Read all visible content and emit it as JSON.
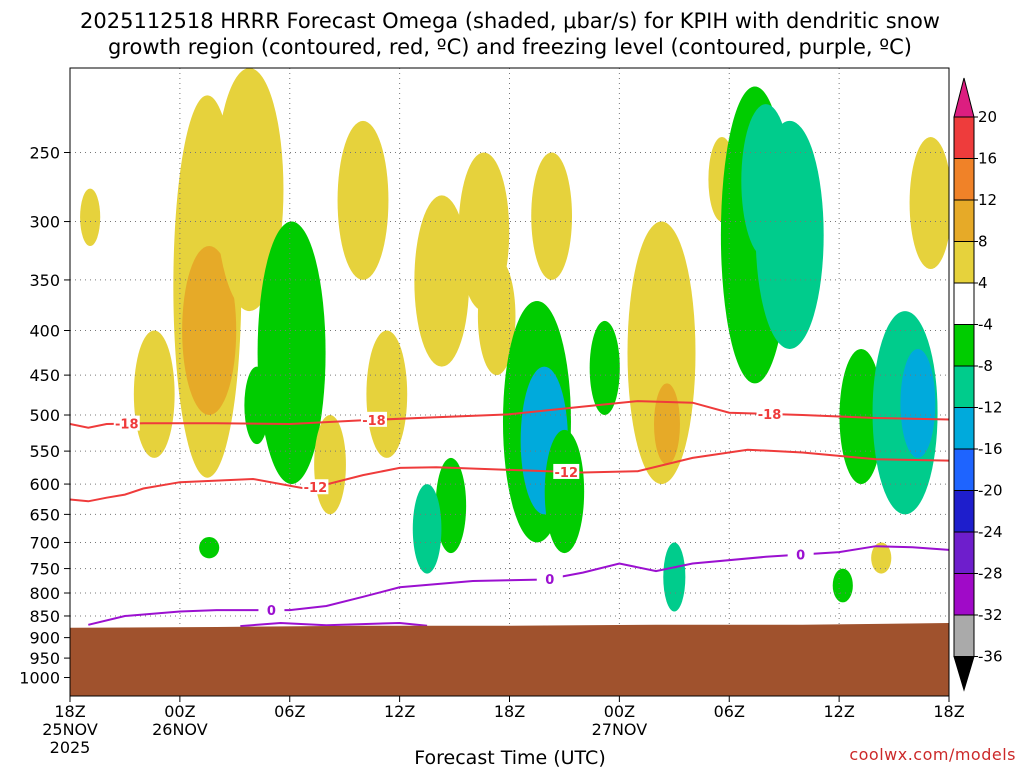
{
  "chart_data": {
    "type": "contour",
    "title_line1": "2025112518 HRRR Forecast Omega (shaded, μbar/s) for KPIH with dendritic snow",
    "title_line2": "growth region (contoured, red, ºC) and freezing level (contoured, purple, ºC)",
    "xlabel": "Forecast Time (UTC)",
    "credit": "coolwx.com/models",
    "x_ticks": [
      {
        "hour": 0,
        "l1": "18Z",
        "l2": "25NOV",
        "l3": "2025"
      },
      {
        "hour": 6,
        "l1": "00Z",
        "l2": "26NOV",
        "l3": ""
      },
      {
        "hour": 12,
        "l1": "06Z",
        "l2": "",
        "l3": ""
      },
      {
        "hour": 18,
        "l1": "12Z",
        "l2": "",
        "l3": ""
      },
      {
        "hour": 24,
        "l1": "18Z",
        "l2": "",
        "l3": ""
      },
      {
        "hour": 30,
        "l1": "00Z",
        "l2": "27NOV",
        "l3": ""
      },
      {
        "hour": 36,
        "l1": "06Z",
        "l2": "",
        "l3": ""
      },
      {
        "hour": 42,
        "l1": "12Z",
        "l2": "",
        "l3": ""
      },
      {
        "hour": 48,
        "l1": "18Z",
        "l2": "",
        "l3": ""
      }
    ],
    "xlim": [
      0,
      48
    ],
    "y_ticks": [
      250,
      300,
      350,
      400,
      450,
      500,
      550,
      600,
      650,
      700,
      750,
      800,
      850,
      900,
      950,
      1000
    ],
    "ylim": [
      1050,
      200
    ],
    "y_scale": "log-pressure (hPa)",
    "surface_pressure_hPa": [
      [
        0,
        877
      ],
      [
        8,
        875
      ],
      [
        16,
        872
      ],
      [
        24,
        872
      ],
      [
        32,
        870
      ],
      [
        40,
        870
      ],
      [
        48,
        866
      ]
    ],
    "colorbar": {
      "ticks": [
        "20",
        "16",
        "12",
        "8",
        "4",
        "-4",
        "-8",
        "-12",
        "-16",
        "-20",
        "-24",
        "-28",
        "-32",
        "-36"
      ],
      "colors": [
        "#dc1e80",
        "#ee3c3c",
        "#f08228",
        "#e6aa28",
        "#e6d23c",
        "#ffffff",
        "#00cc00",
        "#00cc8c",
        "#00aadc",
        "#1e64ff",
        "#1e1ecc",
        "#6e1ecc",
        "#a00ac8",
        "#aaaaaa",
        "#000000"
      ]
    },
    "omega_fields": [
      {
        "hour": 1.1,
        "p_top": 275,
        "p_bot": 320,
        "value": 5
      },
      {
        "hour": 4.6,
        "p_top": 400,
        "p_bot": 560,
        "value": 5
      },
      {
        "hour": 7.5,
        "p_top": 215,
        "p_bot": 590,
        "value": 6
      },
      {
        "hour": 7.6,
        "p_top": 320,
        "p_bot": 500,
        "value": 10
      },
      {
        "hour": 9.8,
        "p_top": 200,
        "p_bot": 380,
        "value": 5
      },
      {
        "hour": 7.6,
        "p_top": 690,
        "p_bot": 730,
        "value": -6
      },
      {
        "hour": 10.2,
        "p_top": 440,
        "p_bot": 540,
        "value": -6
      },
      {
        "hour": 12.1,
        "p_top": 300,
        "p_bot": 600,
        "value": -6
      },
      {
        "hour": 14.2,
        "p_top": 500,
        "p_bot": 650,
        "value": 5
      },
      {
        "hour": 16.0,
        "p_top": 230,
        "p_bot": 350,
        "value": 5
      },
      {
        "hour": 17.3,
        "p_top": 400,
        "p_bot": 560,
        "value": 5
      },
      {
        "hour": 20.3,
        "p_top": 280,
        "p_bot": 440,
        "value": 5
      },
      {
        "hour": 22.6,
        "p_top": 250,
        "p_bot": 380,
        "value": 5
      },
      {
        "hour": 23.3,
        "p_top": 330,
        "p_bot": 450,
        "value": 5
      },
      {
        "hour": 25.5,
        "p_top": 370,
        "p_bot": 700,
        "value": -6
      },
      {
        "hour": 25.9,
        "p_top": 440,
        "p_bot": 650,
        "value": -12
      },
      {
        "hour": 20.8,
        "p_top": 560,
        "p_bot": 720,
        "value": -7
      },
      {
        "hour": 19.5,
        "p_top": 600,
        "p_bot": 760,
        "value": -10
      },
      {
        "hour": 26.3,
        "p_top": 250,
        "p_bot": 350,
        "value": 5
      },
      {
        "hour": 29.2,
        "p_top": 390,
        "p_bot": 500,
        "value": -6
      },
      {
        "hour": 27.0,
        "p_top": 520,
        "p_bot": 720,
        "value": -7
      },
      {
        "hour": 32.3,
        "p_top": 300,
        "p_bot": 600,
        "value": 5
      },
      {
        "hour": 32.6,
        "p_top": 460,
        "p_bot": 570,
        "value": 10
      },
      {
        "hour": 33.0,
        "p_top": 700,
        "p_bot": 840,
        "value": -8
      },
      {
        "hour": 35.6,
        "p_top": 240,
        "p_bot": 300,
        "value": 5
      },
      {
        "hour": 37.4,
        "p_top": 210,
        "p_bot": 460,
        "value": -7
      },
      {
        "hour": 38.0,
        "p_top": 220,
        "p_bot": 330,
        "value": -11
      },
      {
        "hour": 39.3,
        "p_top": 230,
        "p_bot": 420,
        "value": -8
      },
      {
        "hour": 43.2,
        "p_top": 420,
        "p_bot": 600,
        "value": -6
      },
      {
        "hour": 45.6,
        "p_top": 380,
        "p_bot": 650,
        "value": -8
      },
      {
        "hour": 46.3,
        "p_top": 420,
        "p_bot": 560,
        "value": -14
      },
      {
        "hour": 47.0,
        "p_top": 240,
        "p_bot": 340,
        "value": 6
      },
      {
        "hour": 44.3,
        "p_top": 700,
        "p_bot": 760,
        "value": 5
      },
      {
        "hour": 42.2,
        "p_top": 750,
        "p_bot": 820,
        "value": -6
      }
    ],
    "contours": [
      {
        "series": "-18 C isotherm (DGZ top)",
        "color": "#ef3b3b",
        "label": "-18",
        "label_at": [
          3.1,
          16.6,
          38.2
        ],
        "points": [
          [
            0,
            512
          ],
          [
            1,
            517
          ],
          [
            2,
            512
          ],
          [
            4,
            511
          ],
          [
            8,
            511
          ],
          [
            12,
            512
          ],
          [
            16,
            507
          ],
          [
            20,
            503
          ],
          [
            24,
            499
          ],
          [
            28,
            489
          ],
          [
            31,
            482
          ],
          [
            34,
            484
          ],
          [
            36,
            497
          ],
          [
            40,
            500
          ],
          [
            44,
            504
          ],
          [
            48,
            506
          ]
        ]
      },
      {
        "series": "-12 C isotherm (DGZ bottom)",
        "color": "#ef3b3b",
        "label": "-12",
        "label_at": [
          13.4,
          27.1
        ],
        "points": [
          [
            0,
            625
          ],
          [
            1,
            628
          ],
          [
            2,
            622
          ],
          [
            3,
            617
          ],
          [
            4,
            607
          ],
          [
            6,
            597
          ],
          [
            10,
            592
          ],
          [
            13,
            608
          ],
          [
            16,
            586
          ],
          [
            18,
            575
          ],
          [
            20,
            574
          ],
          [
            24,
            578
          ],
          [
            28,
            582
          ],
          [
            31,
            580
          ],
          [
            34,
            560
          ],
          [
            37,
            548
          ],
          [
            40,
            552
          ],
          [
            44,
            562
          ],
          [
            48,
            564
          ]
        ]
      },
      {
        "series": "0 C isotherm (freezing level)",
        "color": "#9b10d0",
        "label": "0",
        "label_at": [
          11.0,
          26.2,
          39.9
        ],
        "points": [
          [
            1,
            870
          ],
          [
            3,
            850
          ],
          [
            6,
            840
          ],
          [
            8,
            837
          ],
          [
            12,
            837
          ],
          [
            14,
            828
          ],
          [
            16,
            808
          ],
          [
            18,
            788
          ],
          [
            22,
            775
          ],
          [
            26,
            772
          ],
          [
            28,
            758
          ],
          [
            30,
            740
          ],
          [
            32,
            755
          ],
          [
            34,
            740
          ],
          [
            38,
            727
          ],
          [
            42,
            718
          ],
          [
            44,
            707
          ],
          [
            46,
            709
          ],
          [
            48,
            714
          ]
        ]
      },
      {
        "series": "0 C isotherm (near surface)",
        "color": "#9b10d0",
        "label": "",
        "label_at": [],
        "points": [
          [
            9.3,
            873
          ],
          [
            11.5,
            866
          ],
          [
            14,
            871
          ],
          [
            18,
            866
          ],
          [
            19.5,
            872
          ]
        ]
      }
    ]
  }
}
